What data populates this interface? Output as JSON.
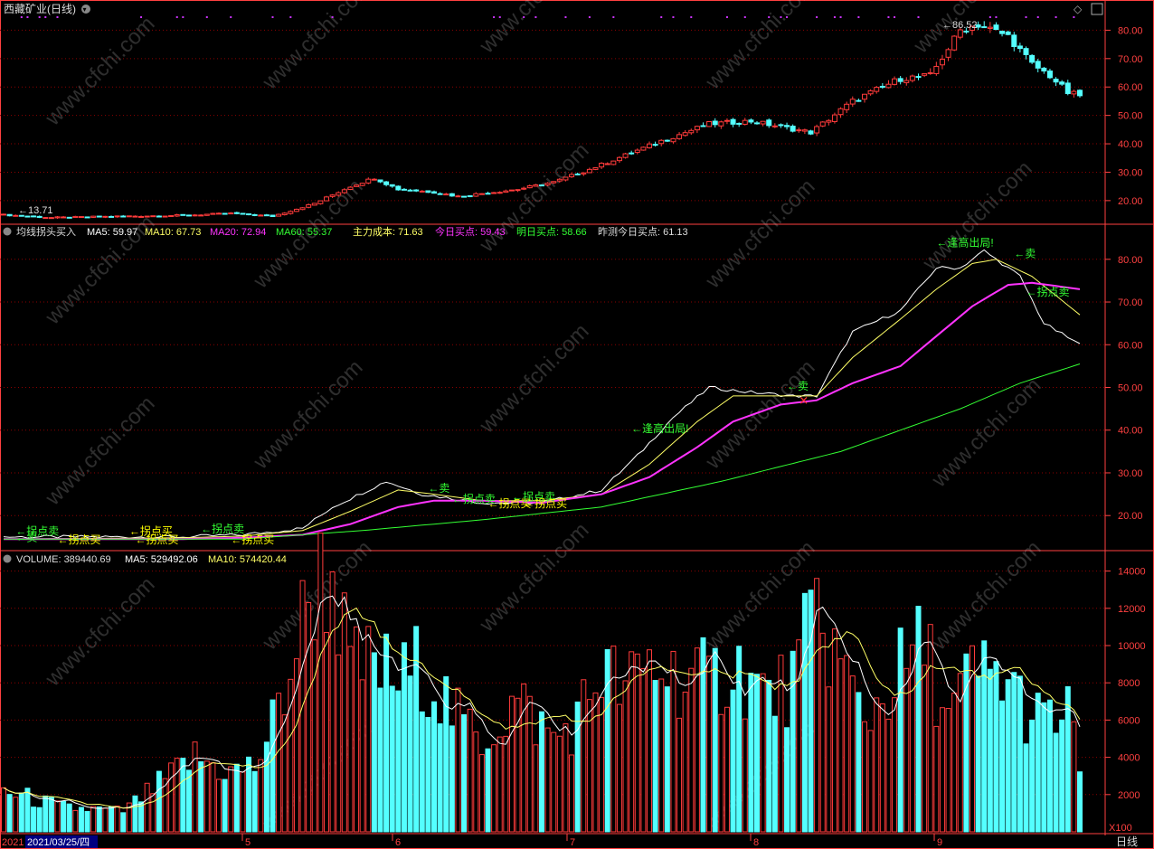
{
  "header": {
    "title": "西藏矿业(日线)",
    "peak_label": "86.52",
    "low_label": "13.71"
  },
  "indicator_header": {
    "name": "均线拐头买入",
    "ma5": "MA5: 59.97",
    "ma10": "MA10: 67.73",
    "ma20": "MA20: 72.94",
    "ma60": "MA60: 55.37",
    "cost": "主力成本: 71.63",
    "today_buy": "今日买点: 59.43",
    "tomorrow_buy": "明日买点: 58.66",
    "yesterday_est": "昨测今日买点: 61.13"
  },
  "volume_header": {
    "vol": "VOLUME: 389440.69",
    "ma5": "MA5: 529492.06",
    "ma10": "MA10: 574420.44"
  },
  "bottom_bar": {
    "year_prefix": "2021",
    "cursor_date": "2021/03/25/四",
    "months": [
      "5",
      "6",
      "7",
      "8",
      "9"
    ],
    "period": "日线",
    "vol_unit": "X100"
  },
  "watermark": "www.cfchi.com",
  "colors": {
    "up": "#ff3b3b",
    "down": "#54ffff",
    "ma5": "#ffffff",
    "ma10": "#ffff66",
    "ma20": "#ff33ff",
    "ma60": "#33ff33",
    "grid": "#8b0000",
    "axis": "#ff4040"
  },
  "chart_data": [
    {
      "type": "candlestick",
      "title": "西藏矿业(日线)",
      "ylim": [
        12,
        90
      ],
      "ticks": [
        "20.00",
        "30.00",
        "40.00",
        "50.00",
        "60.00",
        "70.00",
        "80.00"
      ],
      "annotations": [
        "86.52",
        "13.71"
      ],
      "close_anchors": [
        [
          0,
          15
        ],
        [
          8,
          14
        ],
        [
          20,
          14.5
        ],
        [
          30,
          14.8
        ],
        [
          38,
          15.5
        ],
        [
          45,
          14.5
        ],
        [
          52,
          19
        ],
        [
          58,
          25
        ],
        [
          62,
          28
        ],
        [
          66,
          24
        ],
        [
          72,
          23
        ],
        [
          76,
          21.5
        ],
        [
          86,
          24
        ],
        [
          92,
          26.5
        ],
        [
          98,
          31
        ],
        [
          104,
          36
        ],
        [
          110,
          41
        ],
        [
          118,
          47
        ],
        [
          125,
          48
        ],
        [
          135,
          44
        ],
        [
          142,
          55
        ],
        [
          150,
          63
        ],
        [
          155,
          64
        ],
        [
          160,
          80
        ],
        [
          163,
          82
        ],
        [
          168,
          78
        ],
        [
          172,
          68
        ],
        [
          175,
          64
        ],
        [
          178,
          58
        ],
        [
          180,
          57
        ]
      ]
    },
    {
      "type": "line",
      "title": "均线拐头买入",
      "ylim": [
        12,
        88
      ],
      "ticks": [
        "20.00",
        "30.00",
        "40.00",
        "50.00",
        "60.00",
        "70.00",
        "80.00"
      ],
      "series": [
        {
          "name": "MA5",
          "points": [
            [
              0,
              15
            ],
            [
              30,
              15
            ],
            [
              40,
              15.5
            ],
            [
              50,
              17
            ],
            [
              55,
              22
            ],
            [
              64,
              28
            ],
            [
              70,
              25
            ],
            [
              80,
              23
            ],
            [
              90,
              23
            ],
            [
              100,
              26
            ],
            [
              106,
              34
            ],
            [
              112,
              43
            ],
            [
              118,
              50
            ],
            [
              124,
              49
            ],
            [
              132,
              48
            ],
            [
              136,
              48
            ],
            [
              142,
              63
            ],
            [
              150,
              68
            ],
            [
              156,
              78
            ],
            [
              160,
              78
            ],
            [
              164,
              82
            ],
            [
              170,
              76
            ],
            [
              174,
              65
            ],
            [
              180,
              60
            ]
          ]
        },
        {
          "name": "MA10",
          "points": [
            [
              0,
              14.5
            ],
            [
              30,
              14.8
            ],
            [
              40,
              15.2
            ],
            [
              50,
              16.5
            ],
            [
              58,
              21
            ],
            [
              66,
              26
            ],
            [
              72,
              25
            ],
            [
              80,
              23.5
            ],
            [
              90,
              23.5
            ],
            [
              100,
              25
            ],
            [
              108,
              32
            ],
            [
              116,
              42
            ],
            [
              122,
              48
            ],
            [
              130,
              48
            ],
            [
              136,
              48
            ],
            [
              142,
              57
            ],
            [
              150,
              66
            ],
            [
              156,
              73
            ],
            [
              162,
              79
            ],
            [
              166,
              80
            ],
            [
              172,
              76
            ],
            [
              180,
              67
            ]
          ]
        },
        {
          "name": "MA20",
          "points": [
            [
              0,
              14.5
            ],
            [
              30,
              14.5
            ],
            [
              40,
              14.8
            ],
            [
              50,
              15.5
            ],
            [
              58,
              18
            ],
            [
              66,
              22
            ],
            [
              72,
              23.5
            ],
            [
              80,
              23.5
            ],
            [
              90,
              23
            ],
            [
              100,
              25
            ],
            [
              108,
              29
            ],
            [
              116,
              36
            ],
            [
              122,
              42
            ],
            [
              130,
              46
            ],
            [
              136,
              47
            ],
            [
              142,
              51
            ],
            [
              150,
              55
            ],
            [
              156,
              62
            ],
            [
              162,
              69
            ],
            [
              168,
              74
            ],
            [
              172,
              74.5
            ],
            [
              180,
              73
            ]
          ]
        },
        {
          "name": "MA60",
          "points": [
            [
              0,
              14.5
            ],
            [
              40,
              14.5
            ],
            [
              60,
              16.5
            ],
            [
              80,
              19
            ],
            [
              100,
              22
            ],
            [
              120,
              28
            ],
            [
              140,
              35
            ],
            [
              160,
              45
            ],
            [
              170,
              51
            ],
            [
              180,
              55.5
            ]
          ]
        }
      ],
      "signals": [
        {
          "text": "←拐点卖",
          "x": 2,
          "y": 15.5
        },
        {
          "text": "←卖",
          "x": 2,
          "y": 14
        },
        {
          "text": "←拐点买",
          "x": 9,
          "y": 13.5
        },
        {
          "text": "←拐点买",
          "x": 21,
          "y": 15.5
        },
        {
          "text": "←拐点买",
          "x": 22,
          "y": 13.5
        },
        {
          "text": "←拐点卖",
          "x": 33,
          "y": 16
        },
        {
          "text": "←拐点买",
          "x": 38,
          "y": 13.5
        },
        {
          "text": "←卖",
          "x": 71,
          "y": 25.5
        },
        {
          "text": "←拐点卖",
          "x": 75,
          "y": 23
        },
        {
          "text": "←拐点买",
          "x": 81,
          "y": 22
        },
        {
          "text": "←拐点卖",
          "x": 85,
          "y": 23.5
        },
        {
          "text": "←拐点买",
          "x": 87,
          "y": 22
        },
        {
          "text": "←逢高出局!",
          "x": 105,
          "y": 39.5
        },
        {
          "text": "←卖",
          "x": 131,
          "y": 49.5
        },
        {
          "text": "←逢高出局!",
          "x": 156,
          "y": 83
        },
        {
          "text": "←卖",
          "x": 169,
          "y": 80.5
        },
        {
          "text": "←拐点卖",
          "x": 171,
          "y": 71.5
        }
      ]
    },
    {
      "type": "bar",
      "title": "VOLUME",
      "ylim": [
        0,
        15000
      ],
      "unit": "X100",
      "ticks": [
        "2000",
        "4000",
        "6000",
        "8000",
        "10000",
        "12000",
        "14000"
      ],
      "volume_anchors": [
        [
          0,
          2200
        ],
        [
          10,
          1300
        ],
        [
          20,
          1100
        ],
        [
          28,
          3000
        ],
        [
          32,
          4000
        ],
        [
          38,
          3200
        ],
        [
          42,
          3500
        ],
        [
          46,
          6500
        ],
        [
          52,
          13500
        ],
        [
          55,
          13900
        ],
        [
          58,
          8600
        ],
        [
          62,
          9000
        ],
        [
          66,
          8000
        ],
        [
          70,
          9000
        ],
        [
          76,
          6000
        ],
        [
          80,
          5000
        ],
        [
          86,
          7000
        ],
        [
          92,
          5000
        ],
        [
          96,
          6000
        ],
        [
          100,
          8800
        ],
        [
          104,
          7500
        ],
        [
          108,
          9000
        ],
        [
          112,
          8500
        ],
        [
          118,
          8000
        ],
        [
          122,
          9000
        ],
        [
          128,
          7200
        ],
        [
          132,
          8000
        ],
        [
          136,
          11800
        ],
        [
          140,
          9000
        ],
        [
          144,
          6000
        ],
        [
          150,
          8600
        ],
        [
          154,
          10000
        ],
        [
          158,
          6000
        ],
        [
          162,
          8500
        ],
        [
          168,
          8200
        ],
        [
          172,
          6000
        ],
        [
          176,
          6000
        ],
        [
          178,
          6200
        ],
        [
          180,
          3900
        ]
      ],
      "series": [
        {
          "name": "MA5"
        },
        {
          "name": "MA10"
        }
      ]
    }
  ]
}
